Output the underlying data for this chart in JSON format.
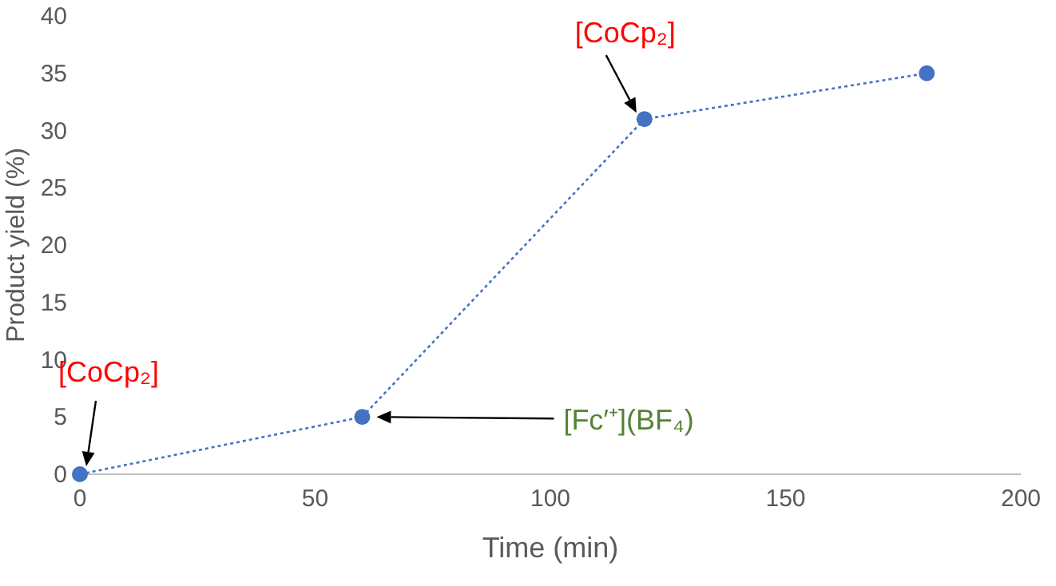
{
  "chart_data": {
    "type": "line",
    "xlabel": "Time (min)",
    "ylabel": "Product yield (%)",
    "x": [
      0,
      60,
      120,
      180
    ],
    "series": [
      {
        "color": "#4472c4",
        "values": [
          0,
          5,
          31,
          35
        ]
      }
    ],
    "xlim": [
      0,
      200
    ],
    "xticks": [
      0,
      50,
      100,
      150,
      200
    ],
    "ylim": [
      0,
      40
    ],
    "yticks": [
      0,
      5,
      10,
      15,
      20,
      25,
      30,
      35,
      40
    ],
    "grid": false,
    "marker": "circle",
    "line_style": "dotted",
    "annotations": [
      "[CoCp₂]",
      "[Fc′⁺](BF₄)",
      "[CoCp₂]"
    ]
  }
}
